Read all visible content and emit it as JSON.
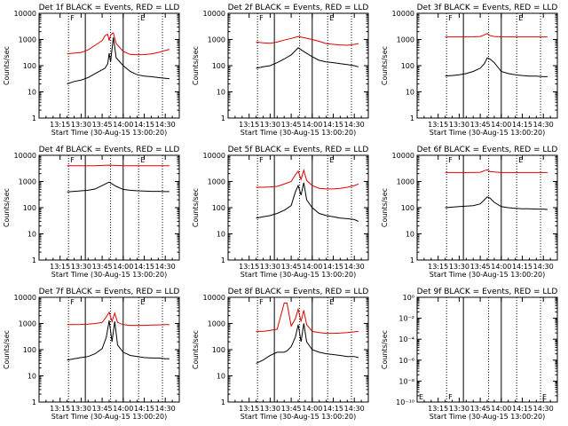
{
  "window_size": "640x480",
  "colors": {
    "events": "#000000",
    "lld": "#e00000",
    "background": "#ffffff"
  },
  "common": {
    "xlabel": "Start Time (30-Aug-15 13:00:20)",
    "ylabel": "Counts/sec",
    "x_ticks": [
      "13:15",
      "13:30",
      "13:45",
      "14:00",
      "14:15",
      "14:30"
    ],
    "x_tick_minutes": [
      15,
      30,
      45,
      60,
      75,
      90
    ],
    "xlim_minutes": [
      0,
      100
    ],
    "y_ticks_log": [
      "1",
      "10",
      "100",
      "1000",
      "10000"
    ],
    "ylim_log": [
      1,
      10000
    ],
    "solid_lines_minutes": [
      33,
      60
    ],
    "dotted_lines_minutes": [
      21,
      51,
      71,
      88
    ]
  },
  "chart_data": [
    {
      "type": "line",
      "panel": 1,
      "title": "Det 1f BLACK = Events, RED = LLD",
      "corner_letters": [
        "F",
        "E"
      ],
      "x": [
        0,
        5,
        10,
        15,
        20,
        25,
        30,
        35,
        40,
        45,
        47,
        49,
        50,
        51,
        53,
        55,
        60,
        65,
        70,
        75,
        80,
        85,
        90,
        93
      ],
      "series": [
        {
          "name": "Events",
          "values": [
            null,
            null,
            null,
            null,
            20,
            25,
            28,
            35,
            50,
            70,
            80,
            120,
            300,
            140,
            1200,
            200,
            100,
            60,
            45,
            40,
            38,
            35,
            33,
            32
          ]
        },
        {
          "name": "LLD",
          "values": [
            null,
            null,
            null,
            null,
            280,
            300,
            320,
            400,
            600,
            900,
            1400,
            1600,
            900,
            1500,
            1800,
            700,
            350,
            270,
            260,
            265,
            280,
            320,
            380,
            420
          ]
        }
      ]
    },
    {
      "type": "line",
      "panel": 2,
      "title": "Det 2f BLACK = Events, RED = LLD",
      "corner_letters": [
        "F",
        "E"
      ],
      "x": [
        0,
        5,
        10,
        15,
        20,
        25,
        30,
        35,
        40,
        45,
        50,
        55,
        60,
        65,
        70,
        75,
        80,
        85,
        90,
        93
      ],
      "series": [
        {
          "name": "Events",
          "values": [
            null,
            null,
            null,
            null,
            80,
            90,
            100,
            130,
            180,
            260,
            480,
            320,
            220,
            160,
            140,
            130,
            120,
            110,
            100,
            90
          ]
        },
        {
          "name": "LLD",
          "values": [
            null,
            null,
            null,
            null,
            800,
            750,
            720,
            800,
            950,
            1100,
            1300,
            1150,
            1000,
            850,
            700,
            650,
            620,
            600,
            650,
            700
          ]
        }
      ]
    },
    {
      "type": "line",
      "panel": 3,
      "title": "Det 3f BLACK = Events, RED = LLD",
      "corner_letters": [
        "F",
        "E"
      ],
      "x": [
        0,
        5,
        10,
        15,
        20,
        25,
        30,
        35,
        40,
        45,
        48,
        50,
        52,
        55,
        60,
        65,
        70,
        75,
        80,
        85,
        90,
        93
      ],
      "series": [
        {
          "name": "Events",
          "values": [
            null,
            null,
            null,
            null,
            40,
            42,
            45,
            50,
            60,
            80,
            120,
            200,
            180,
            130,
            60,
            50,
            45,
            42,
            40,
            40,
            38,
            38
          ]
        },
        {
          "name": "LLD",
          "values": [
            null,
            null,
            null,
            null,
            1250,
            1250,
            1250,
            1250,
            1260,
            1300,
            1500,
            1700,
            1400,
            1300,
            1260,
            1250,
            1250,
            1250,
            1250,
            1250,
            1250,
            1250
          ]
        }
      ]
    },
    {
      "type": "line",
      "panel": 4,
      "title": "Det 4f BLACK = Events, RED = LLD",
      "corner_letters": [
        "F",
        "E"
      ],
      "x": [
        0,
        5,
        10,
        15,
        20,
        25,
        30,
        35,
        40,
        45,
        50,
        55,
        60,
        65,
        70,
        75,
        80,
        85,
        90,
        93
      ],
      "series": [
        {
          "name": "Events",
          "values": [
            null,
            null,
            null,
            null,
            400,
            420,
            440,
            460,
            520,
            700,
            950,
            650,
            500,
            460,
            440,
            430,
            420,
            420,
            410,
            410
          ]
        },
        {
          "name": "LLD",
          "values": [
            null,
            null,
            null,
            null,
            4000,
            4000,
            4000,
            4000,
            4000,
            4100,
            4200,
            4100,
            4000,
            4000,
            4000,
            4000,
            4000,
            4000,
            4000,
            4000
          ]
        }
      ]
    },
    {
      "type": "line",
      "panel": 5,
      "title": "Det 5f BLACK = Events, RED = LLD",
      "corner_letters": [
        "F",
        "E"
      ],
      "x": [
        0,
        5,
        10,
        15,
        20,
        25,
        30,
        35,
        40,
        45,
        48,
        50,
        52,
        54,
        56,
        60,
        65,
        70,
        75,
        80,
        85,
        90,
        93
      ],
      "series": [
        {
          "name": "Events",
          "values": [
            null,
            null,
            null,
            null,
            40,
            45,
            50,
            60,
            80,
            120,
            400,
            700,
            300,
            900,
            200,
            100,
            60,
            50,
            45,
            40,
            38,
            35,
            30
          ]
        },
        {
          "name": "LLD",
          "values": [
            null,
            null,
            null,
            null,
            600,
            600,
            620,
            650,
            800,
            1000,
            1800,
            2500,
            1200,
            2700,
            1100,
            700,
            550,
            520,
            520,
            550,
            600,
            700,
            800
          ]
        }
      ]
    },
    {
      "type": "line",
      "panel": 6,
      "title": "Det 6f BLACK = Events, RED = LLD",
      "corner_letters": [
        "F",
        "E"
      ],
      "x": [
        0,
        5,
        10,
        15,
        20,
        25,
        30,
        35,
        40,
        45,
        48,
        50,
        52,
        55,
        60,
        65,
        70,
        75,
        80,
        85,
        90,
        93
      ],
      "series": [
        {
          "name": "Events",
          "values": [
            null,
            null,
            null,
            null,
            100,
            105,
            110,
            115,
            120,
            140,
            200,
            260,
            230,
            160,
            110,
            100,
            95,
            90,
            90,
            88,
            88,
            85
          ]
        },
        {
          "name": "LLD",
          "values": [
            null,
            null,
            null,
            null,
            2200,
            2200,
            2200,
            2200,
            2200,
            2250,
            2600,
            2800,
            2400,
            2300,
            2200,
            2200,
            2200,
            2200,
            2200,
            2200,
            2200,
            2200
          ]
        }
      ]
    },
    {
      "type": "line",
      "panel": 7,
      "title": "Det 7f BLACK = Events, RED = LLD",
      "corner_letters": [
        "F",
        "E"
      ],
      "x": [
        0,
        5,
        10,
        15,
        20,
        25,
        30,
        35,
        40,
        45,
        48,
        50,
        52,
        54,
        56,
        60,
        65,
        70,
        75,
        80,
        85,
        90,
        93
      ],
      "series": [
        {
          "name": "Events",
          "values": [
            null,
            null,
            null,
            null,
            40,
            45,
            50,
            55,
            70,
            110,
            300,
            1300,
            200,
            1200,
            150,
            80,
            60,
            55,
            50,
            48,
            48,
            45,
            45
          ]
        },
        {
          "name": "LLD",
          "values": [
            null,
            null,
            null,
            null,
            900,
            900,
            920,
            950,
            1000,
            1100,
            1800,
            2700,
            1200,
            2500,
            1100,
            900,
            850,
            850,
            850,
            870,
            880,
            900,
            900
          ]
        }
      ]
    },
    {
      "type": "line",
      "panel": 8,
      "title": "Det 8f BLACK = Events, RED = LLD",
      "corner_letters": [
        "F",
        "E"
      ],
      "x": [
        0,
        5,
        10,
        15,
        20,
        25,
        30,
        35,
        40,
        42,
        45,
        48,
        50,
        52,
        54,
        56,
        60,
        65,
        70,
        75,
        80,
        85,
        90,
        93
      ],
      "series": [
        {
          "name": "Events",
          "values": [
            null,
            null,
            null,
            null,
            30,
            40,
            60,
            80,
            80,
            90,
            130,
            300,
            900,
            200,
            1000,
            200,
            100,
            80,
            70,
            65,
            60,
            55,
            55,
            50
          ]
        },
        {
          "name": "LLD",
          "values": [
            null,
            null,
            null,
            null,
            500,
            500,
            550,
            600,
            6000,
            6000,
            800,
            1500,
            3500,
            1200,
            3200,
            900,
            500,
            450,
            420,
            420,
            430,
            450,
            480,
            500
          ]
        }
      ]
    },
    {
      "type": "line",
      "panel": 9,
      "title": "Det 9f BLACK = Events, RED = LLD",
      "corner_letters": [
        "E",
        "F",
        "E"
      ],
      "y_ticks_log": [
        "10⁻¹⁰",
        "10⁻⁸",
        "10⁻⁶",
        "10⁻⁴",
        "10⁻²",
        "10⁰"
      ],
      "x": [],
      "series": []
    }
  ]
}
